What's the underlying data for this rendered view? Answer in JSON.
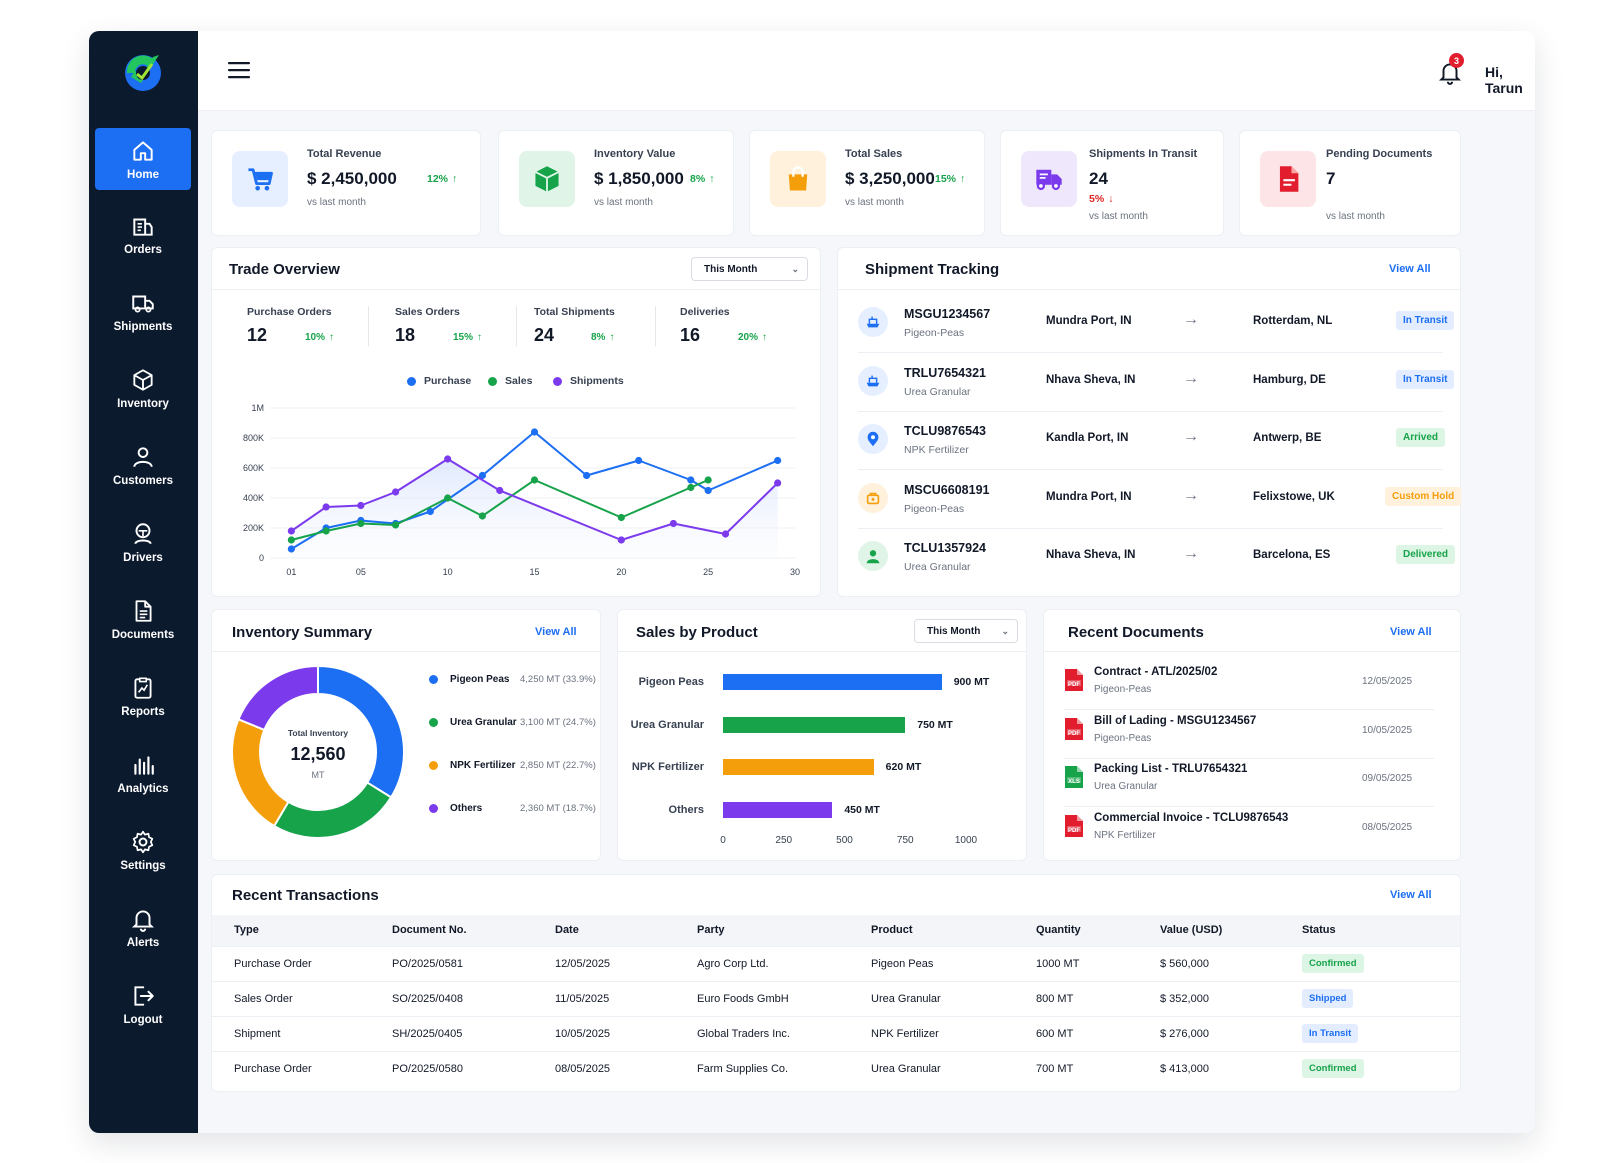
{
  "user": {
    "greeting": "Hi, Tarun",
    "notifications": "3"
  },
  "sidebar": {
    "items": [
      {
        "label": "Home",
        "icon": "home-icon",
        "active": true
      },
      {
        "label": "Orders",
        "icon": "orders-icon"
      },
      {
        "label": "Shipments",
        "icon": "truck-icon"
      },
      {
        "label": "Inventory",
        "icon": "box-icon"
      },
      {
        "label": "Customers",
        "icon": "user-icon"
      },
      {
        "label": "Drivers",
        "icon": "driver-icon"
      },
      {
        "label": "Documents",
        "icon": "document-icon"
      },
      {
        "label": "Reports",
        "icon": "report-icon"
      },
      {
        "label": "Analytics",
        "icon": "analytics-icon"
      },
      {
        "label": "Settings",
        "icon": "gear-icon"
      },
      {
        "label": "Alerts",
        "icon": "bell-icon"
      },
      {
        "label": "Logout",
        "icon": "logout-icon"
      }
    ]
  },
  "stats": [
    {
      "label": "Total Revenue",
      "value": "$ 2,450,000",
      "change": "12%",
      "direction": "up",
      "sub": "vs last month",
      "icon": "cart-icon",
      "color": "#1c6ef2",
      "bg": "#e5efff"
    },
    {
      "label": "Inventory Value",
      "value": "$ 1,850,000",
      "change": "8%",
      "direction": "up",
      "sub": "vs last month",
      "icon": "cube-icon",
      "color": "#16a34a",
      "bg": "#e0f5e8"
    },
    {
      "label": "Total Sales",
      "value": "$ 3,250,000",
      "change": "15%",
      "direction": "up",
      "sub": "vs last month",
      "icon": "bag-icon",
      "color": "#f59e0b",
      "bg": "#fff1dc"
    },
    {
      "label": "Shipments In Transit",
      "value": "24",
      "change": "5%",
      "direction": "down",
      "sub": "vs last month",
      "icon": "truck-icon",
      "color": "#7c3aed",
      "bg": "#efe8fd"
    },
    {
      "label": "Pending Documents",
      "value": "7",
      "change": "",
      "direction": "",
      "sub": "vs last month",
      "icon": "pdf-icon",
      "color": "#e11d2e",
      "bg": "#fde4e6"
    }
  ],
  "trade": {
    "title": "Trade Overview",
    "period": "This Month",
    "kpis": [
      {
        "label": "Purchase Orders",
        "value": "12",
        "change": "10%"
      },
      {
        "label": "Sales Orders",
        "value": "18",
        "change": "15%"
      },
      {
        "label": "Total Shipments",
        "value": "24",
        "change": "8%"
      },
      {
        "label": "Deliveries",
        "value": "16",
        "change": "20%"
      }
    ],
    "legend": [
      "Purchase",
      "Sales",
      "Shipments"
    ]
  },
  "chart_data": {
    "type": "line",
    "x_ticks": [
      "01",
      "05",
      "10",
      "15",
      "20",
      "25",
      "30"
    ],
    "y_ticks": [
      "1M",
      "800K",
      "600K",
      "400K",
      "200K",
      "0"
    ],
    "ylim": [
      0,
      1000000
    ],
    "xlim": [
      0,
      30
    ],
    "grid": true,
    "legend_position": "top",
    "series": [
      {
        "name": "Purchase",
        "color": "#1c6ef2",
        "points": [
          [
            1,
            60000
          ],
          [
            3,
            200000
          ],
          [
            5,
            250000
          ],
          [
            7,
            230000
          ],
          [
            9,
            310000
          ],
          [
            12,
            550000
          ],
          [
            15,
            840000
          ],
          [
            18,
            550000
          ],
          [
            21,
            650000
          ],
          [
            24,
            520000
          ],
          [
            25,
            450000
          ],
          [
            29,
            650000
          ]
        ]
      },
      {
        "name": "Sales",
        "color": "#16a34a",
        "points": [
          [
            1,
            120000
          ],
          [
            3,
            180000
          ],
          [
            5,
            230000
          ],
          [
            7,
            220000
          ],
          [
            10,
            400000
          ],
          [
            12,
            280000
          ],
          [
            15,
            520000
          ],
          [
            20,
            270000
          ],
          [
            24,
            470000
          ],
          [
            25,
            520000
          ]
        ]
      },
      {
        "name": "Shipments",
        "color": "#7c3aed",
        "points": [
          [
            1,
            180000
          ],
          [
            3,
            340000
          ],
          [
            5,
            350000
          ],
          [
            7,
            440000
          ],
          [
            10,
            660000
          ],
          [
            13,
            450000
          ],
          [
            20,
            120000
          ],
          [
            23,
            230000
          ],
          [
            26,
            160000
          ],
          [
            29,
            500000
          ]
        ]
      }
    ]
  },
  "tracking": {
    "title": "Shipment Tracking",
    "view_all": "View All",
    "rows": [
      {
        "id": "MSGU1234567",
        "product": "Pigeon-Peas",
        "from": "Mundra Port, IN",
        "to": "Rotterdam, NL",
        "status": "In Transit",
        "tone": "blue",
        "icon": "ship-icon",
        "color": "#1c6ef2",
        "bg": "#e5efff"
      },
      {
        "id": "TRLU7654321",
        "product": "Urea Granular",
        "from": "Nhava Sheva, IN",
        "to": "Hamburg, DE",
        "status": "In Transit",
        "tone": "blue",
        "icon": "ship-icon",
        "color": "#1c6ef2",
        "bg": "#e5efff"
      },
      {
        "id": "TCLU9876543",
        "product": "NPK Fertilizer",
        "from": "Kandla Port, IN",
        "to": "Antwerp, BE",
        "status": "Arrived",
        "tone": "green",
        "icon": "pin-icon",
        "color": "#1c6ef2",
        "bg": "#e5efff"
      },
      {
        "id": "MSCU6608191",
        "product": "Pigeon-Peas",
        "from": "Mundra Port, IN",
        "to": "Felixstowe, UK",
        "status": "Custom Hold",
        "tone": "orange",
        "icon": "customs-icon",
        "color": "#f59e0b",
        "bg": "#fff1dc"
      },
      {
        "id": "TCLU1357924",
        "product": "Urea Granular",
        "from": "Nhava Sheva, IN",
        "to": "Barcelona, ES",
        "status": "Delivered",
        "tone": "green",
        "icon": "delivered-icon",
        "color": "#16a34a",
        "bg": "#e0f5e8"
      }
    ]
  },
  "inventory": {
    "title": "Inventory Summary",
    "view_all": "View All",
    "center_label": "Total Inventory",
    "center_value": "12,560",
    "center_unit": "MT",
    "items": [
      {
        "name": "Pigeon Peas",
        "value": 4250,
        "text": "4,250 MT (33.9%)",
        "color": "#1c6ef2"
      },
      {
        "name": "Urea Granular",
        "value": 3100,
        "text": "3,100 MT (24.7%)",
        "color": "#16a34a"
      },
      {
        "name": "NPK Fertilizer",
        "value": 2850,
        "text": "2,850 MT (22.7%)",
        "color": "#f59e0b"
      },
      {
        "name": "Others",
        "value": 2360,
        "text": "2,360 MT (18.7%)",
        "color": "#7c3aed"
      }
    ]
  },
  "sales": {
    "title": "Sales by Product",
    "period": "This Month",
    "max": 1000,
    "ticks": [
      "0",
      "250",
      "500",
      "750",
      "1000"
    ],
    "items": [
      {
        "name": "Pigeon Peas",
        "value": 900,
        "text": "900 MT",
        "color": "#1c6ef2"
      },
      {
        "name": "Urea Granular",
        "value": 750,
        "text": "750 MT",
        "color": "#16a34a"
      },
      {
        "name": "NPK Fertilizer",
        "value": 620,
        "text": "620 MT",
        "color": "#f59e0b"
      },
      {
        "name": "Others",
        "value": 450,
        "text": "450 MT",
        "color": "#7c3aed"
      }
    ]
  },
  "documents": {
    "title": "Recent Documents",
    "view_all": "View All",
    "items": [
      {
        "name": "Contract - ATL/2025/02",
        "sub": "Pigeon-Peas",
        "date": "12/05/2025",
        "type": "PDF",
        "color": "#e11d2e"
      },
      {
        "name": "Bill of Lading - MSGU1234567",
        "sub": "Pigeon-Peas",
        "date": "10/05/2025",
        "type": "PDF",
        "color": "#e11d2e"
      },
      {
        "name": "Packing List - TRLU7654321",
        "sub": "Urea Granular",
        "date": "09/05/2025",
        "type": "XLS",
        "color": "#16a34a"
      },
      {
        "name": "Commercial Invoice - TCLU9876543",
        "sub": "NPK Fertilizer",
        "date": "08/05/2025",
        "type": "PDF",
        "color": "#e11d2e"
      }
    ]
  },
  "transactions": {
    "title": "Recent Transactions",
    "view_all": "View All",
    "columns": [
      "Type",
      "Document No.",
      "Date",
      "Party",
      "Product",
      "Quantity",
      "Value (USD)",
      "Status"
    ],
    "rows": [
      [
        "Purchase Order",
        "PO/2025/0581",
        "12/05/2025",
        "Agro Corp Ltd.",
        "Pigeon Peas",
        "1000 MT",
        "$ 560,000",
        "Confirmed"
      ],
      [
        "Sales Order",
        "SO/2025/0408",
        "11/05/2025",
        "Euro Foods GmbH",
        "Urea Granular",
        "800 MT",
        "$ 352,000",
        "Shipped"
      ],
      [
        "Shipment",
        "SH/2025/0405",
        "10/05/2025",
        "Global Traders Inc.",
        "NPK Fertilizer",
        "600 MT",
        "$ 276,000",
        "In Transit"
      ],
      [
        "Purchase Order",
        "PO/2025/0580",
        "08/05/2025",
        "Farm Supplies Co.",
        "Urea Granular",
        "700 MT",
        "$ 413,000",
        "Confirmed"
      ]
    ],
    "status_tones": {
      "Confirmed": "green",
      "Shipped": "blue",
      "In Transit": "blue"
    }
  }
}
